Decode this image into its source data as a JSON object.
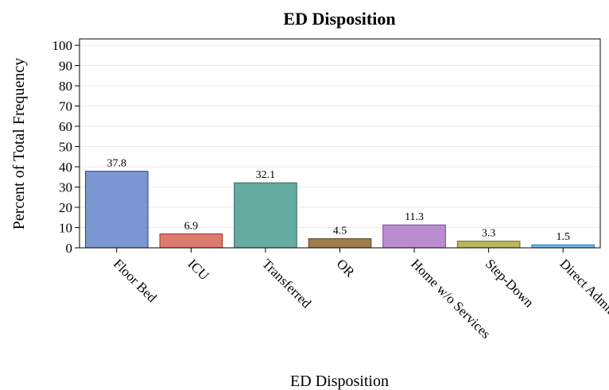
{
  "chart_data": {
    "type": "bar",
    "title": "ED Disposition",
    "xlabel": "ED Disposition",
    "ylabel": "Percent of Total Frequency",
    "ylim": [
      0,
      100
    ],
    "yticks": [
      0,
      10,
      20,
      30,
      40,
      50,
      60,
      70,
      80,
      90,
      100
    ],
    "grid": true,
    "categories": [
      "Floor Bed",
      "ICU",
      "Transferred",
      "OR",
      "Home w/o Services",
      "Step-Down",
      "Direct Admit"
    ],
    "values": [
      37.8,
      6.9,
      32.1,
      4.5,
      11.3,
      3.3,
      1.5
    ],
    "data_labels": [
      "37.8",
      "6.9",
      "32.1",
      "4.5",
      "11.3",
      "3.3",
      "1.5"
    ],
    "colors": {
      "fills": [
        "#7b96d0",
        "#dc7b70",
        "#65aba0",
        "#9f7d4e",
        "#b98cd0",
        "#b9b85c",
        "#6fb9e6"
      ],
      "strokes": [
        "#2b3fa8",
        "#a0322b",
        "#2a6a5f",
        "#5a4220",
        "#7a3f9a",
        "#6f6e21",
        "#2f7ab8"
      ]
    }
  }
}
